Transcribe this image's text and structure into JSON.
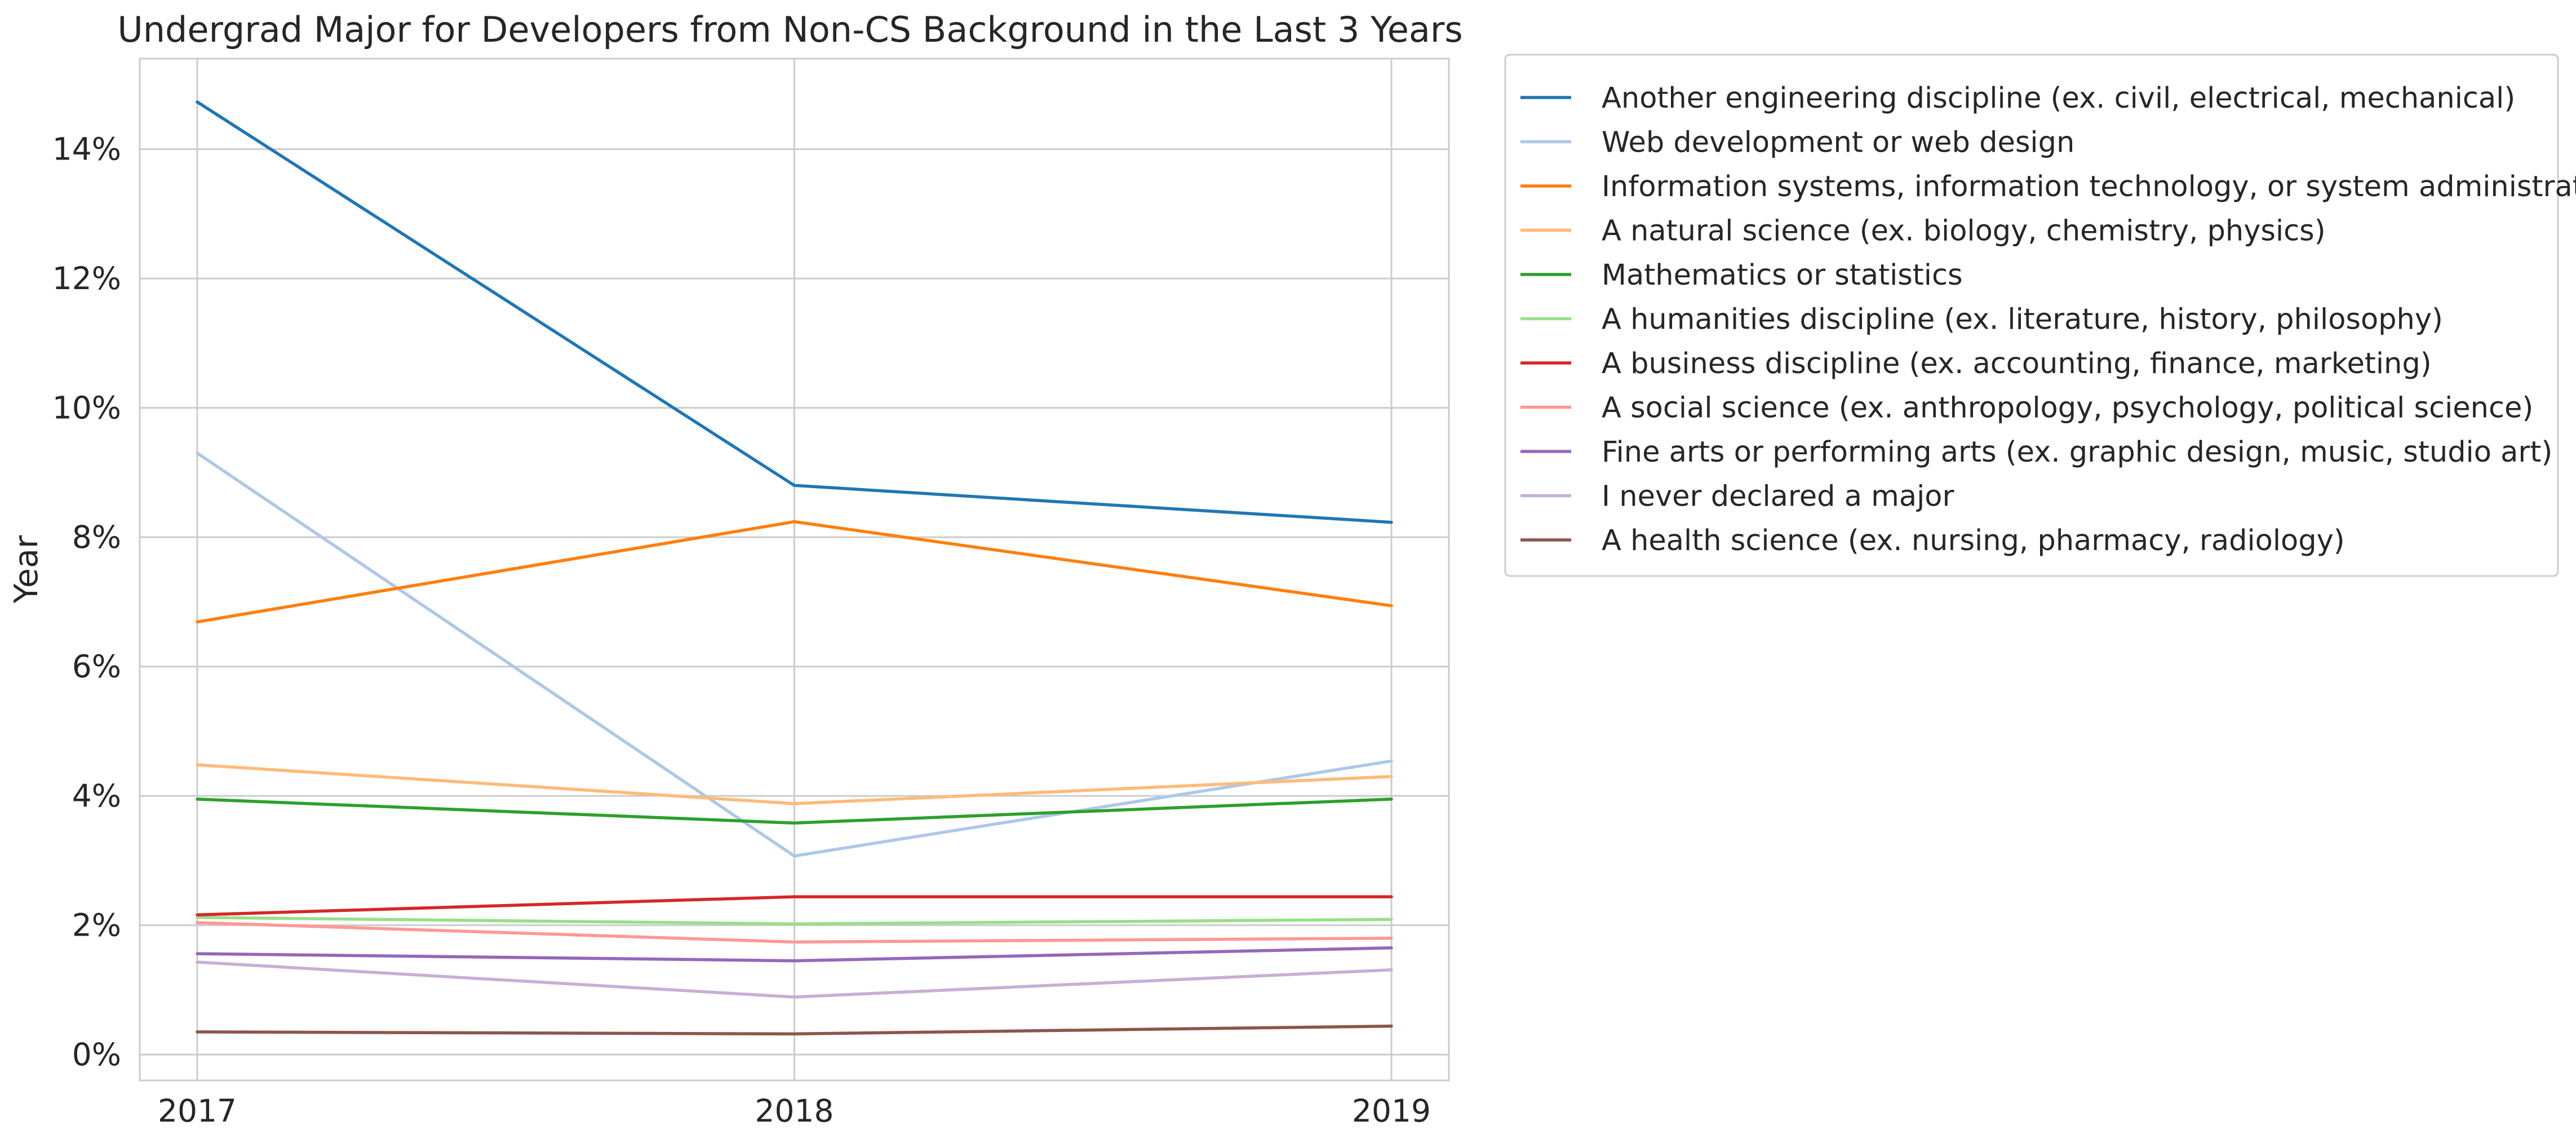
{
  "chart_data": {
    "type": "line",
    "title": "Undergrad Major for Developers from Non-CS Background in the Last 3 Years",
    "xlabel": "",
    "ylabel": "Year",
    "x": [
      "2017",
      "2018",
      "2019"
    ],
    "ylim": [
      -0.4,
      15.4
    ],
    "y_ticks": [
      0,
      2,
      4,
      6,
      8,
      10,
      12,
      14
    ],
    "y_tick_labels": [
      "0%",
      "2%",
      "4%",
      "6%",
      "8%",
      "10%",
      "12%",
      "14%"
    ],
    "grid": true,
    "legend_position": "outside-right",
    "series": [
      {
        "name": "Another engineering discipline (ex. civil, electrical, mechanical)",
        "color": "#1f77b4",
        "values": [
          14.73,
          8.8,
          8.23
        ]
      },
      {
        "name": "Web development or web design",
        "color": "#aec7e8",
        "values": [
          9.3,
          3.07,
          4.54
        ]
      },
      {
        "name": "Information systems, information technology, or system administration",
        "color": "#ff7f0e",
        "values": [
          6.69,
          8.24,
          6.94
        ]
      },
      {
        "name": "A natural science (ex. biology, chemistry, physics)",
        "color": "#ffbb78",
        "values": [
          4.48,
          3.88,
          4.3
        ]
      },
      {
        "name": "Mathematics or statistics",
        "color": "#2ca02c",
        "values": [
          3.95,
          3.58,
          3.95
        ]
      },
      {
        "name": "A humanities discipline (ex. literature, history, philosophy)",
        "color": "#98df8a",
        "values": [
          2.12,
          2.02,
          2.09
        ]
      },
      {
        "name": "A business discipline (ex. accounting, finance, marketing)",
        "color": "#d62728",
        "values": [
          2.16,
          2.44,
          2.44
        ]
      },
      {
        "name": "A social science (ex. anthropology, psychology, political science)",
        "color": "#ff9896",
        "values": [
          2.04,
          1.74,
          1.8
        ]
      },
      {
        "name": "Fine arts or performing arts (ex. graphic design, music, studio art)",
        "color": "#9467bd",
        "values": [
          1.56,
          1.45,
          1.65
        ]
      },
      {
        "name": "I never declared a major",
        "color": "#c5b0d5",
        "values": [
          1.43,
          0.89,
          1.31
        ]
      },
      {
        "name": "A health science (ex. nursing, pharmacy, radiology)",
        "color": "#8c564b",
        "values": [
          0.35,
          0.32,
          0.44
        ]
      }
    ]
  }
}
